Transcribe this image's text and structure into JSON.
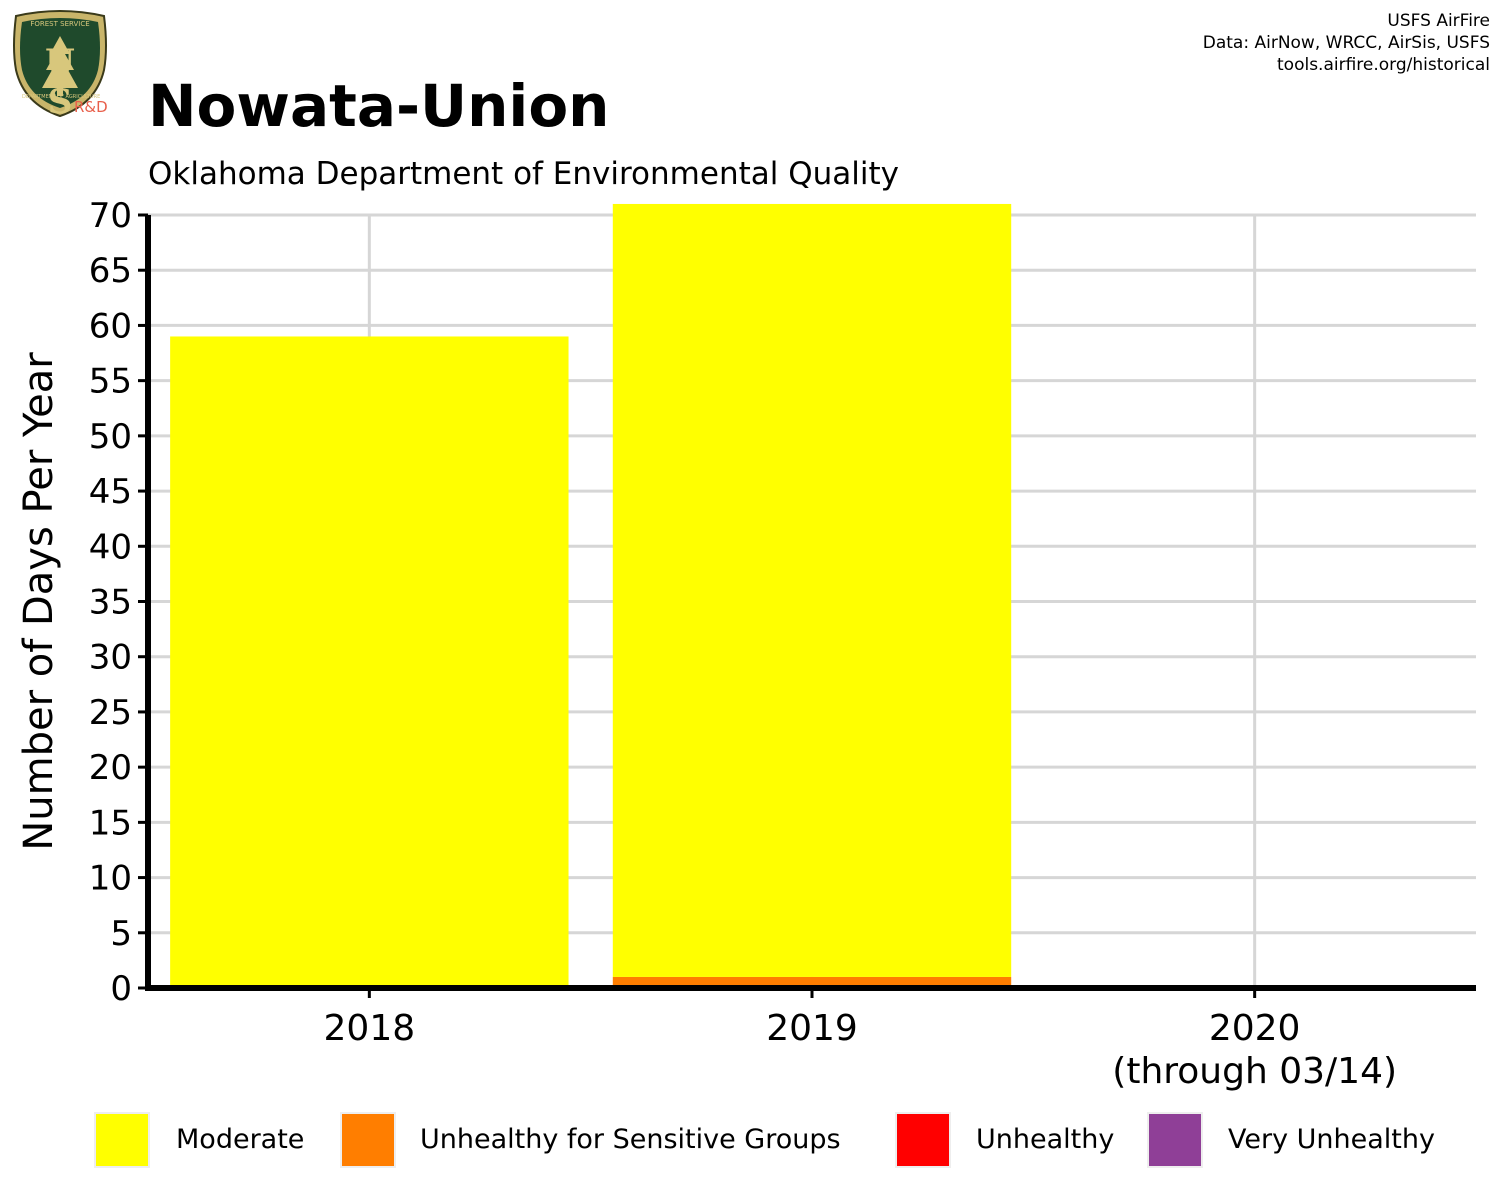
{
  "header": {
    "title": "Nowata-Union",
    "subtitle": "Oklahoma Department of Environmental Quality",
    "credits": [
      "USFS AirFire",
      "Data: AirNow, WRCC, AirSis, USFS",
      "tools.airfire.org/historical"
    ],
    "logo": {
      "icon": "usfs-shield-icon",
      "top_text": "FOREST SERVICE",
      "letters": "U S",
      "bottom_text": "DEPARTMENT OF AGRICULTURE",
      "badge": "R&D"
    }
  },
  "chart_data": {
    "type": "bar",
    "stacked": true,
    "categories": [
      "2018",
      "2019",
      "2020"
    ],
    "category_sublabels": [
      "",
      "",
      "(through 03/14)"
    ],
    "title": "Nowata-Union",
    "subtitle": "Oklahoma Department of Environmental Quality",
    "xlabel": "",
    "ylabel": "Number of Days Per Year",
    "ylim": [
      0,
      70
    ],
    "yticks": [
      0,
      5,
      10,
      15,
      20,
      25,
      30,
      35,
      40,
      45,
      50,
      55,
      60,
      65,
      70
    ],
    "grid": true,
    "legend_position": "bottom",
    "series": [
      {
        "name": "Unhealthy for Sensitive Groups",
        "color": "#FF7E00",
        "values": [
          0,
          1,
          0
        ]
      },
      {
        "name": "Moderate",
        "color": "#FFFF00",
        "values": [
          59,
          70,
          0
        ]
      },
      {
        "name": "Unhealthy",
        "color": "#FF0000",
        "values": [
          0,
          0,
          0
        ]
      },
      {
        "name": "Very Unhealthy",
        "color": "#8F3F97",
        "values": [
          0,
          0,
          0
        ]
      }
    ],
    "legend": [
      {
        "name": "Moderate",
        "color": "#FFFF00"
      },
      {
        "name": "Unhealthy for Sensitive Groups",
        "color": "#FF7E00"
      },
      {
        "name": "Unhealthy",
        "color": "#FF0000"
      },
      {
        "name": "Very Unhealthy",
        "color": "#8F3F97"
      }
    ]
  }
}
